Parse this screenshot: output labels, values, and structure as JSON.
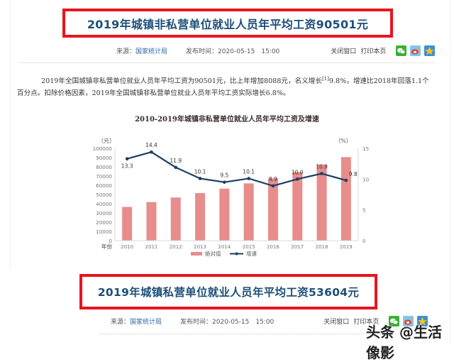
{
  "article1": {
    "title": "2019年城镇非私营单位就业人员年平均工资90501元",
    "source_label": "来源：",
    "source": "国家统计局",
    "publish_label": "发布时间：",
    "publish_time": "2020-05-15　15:00",
    "close_window": "关闭窗口",
    "print_page": "打印本页",
    "share_icons": [
      "wechat-icon",
      "weibo-icon",
      "qzone-icon"
    ],
    "paragraph_part1": "2019年全国城镇非私营单位就业人员年平均工资为90501元，比上年增加8088元，名义增长",
    "footnote": "[1]",
    "paragraph_part2": "9.8%，增速比2018年回落1.1个百分点。扣除价格因素，2019年全国城镇非私营单位就业人员年平均工资实际增长6.8%。"
  },
  "article2": {
    "title": "2019年城镇私营单位就业人员年平均工资53604元",
    "source_label": "来源：",
    "source": "国家统计局",
    "publish_label": "发布时间：",
    "publish_time": "2020-05-15　15:00",
    "close_window": "关闭窗口",
    "print_page": "打印本页"
  },
  "watermark": "头条 @生活像影",
  "colors": {
    "title_border": "#e8141e",
    "title_text": "#1d4f7a",
    "bar": "#e88c8c",
    "line": "#1b3f63",
    "source_link": "#2b6aa8"
  },
  "chart_data": {
    "type": "bar",
    "title": "2010-2019年城镇非私营单位就业人员年平均工资及增速",
    "xlabel": "年份",
    "ylabel": "（元）",
    "y2label": "（%）",
    "categories": [
      "2010",
      "2011",
      "2012",
      "2013",
      "2014",
      "2015",
      "2016",
      "2017",
      "2018",
      "2019"
    ],
    "series": [
      {
        "name": "绝对值",
        "type": "bar",
        "axis": "left",
        "values": [
          36539,
          41799,
          46769,
          51483,
          56360,
          62029,
          67569,
          74318,
          82413,
          90501
        ]
      },
      {
        "name": "增速",
        "type": "line",
        "axis": "right",
        "values": [
          13.3,
          14.4,
          11.9,
          10.1,
          9.5,
          10.1,
          8.9,
          10.0,
          10.9,
          9.8
        ]
      }
    ],
    "ylim": [
      0,
      100000
    ],
    "yticks": [
      "0",
      "10000",
      "20000",
      "30000",
      "40000",
      "50000",
      "60000",
      "70000",
      "80000",
      "90000",
      "100000"
    ],
    "y2lim": [
      0,
      15
    ],
    "y2ticks": [
      "0",
      "5",
      "10",
      "15"
    ],
    "legend_position": "bottom",
    "grid": false
  }
}
